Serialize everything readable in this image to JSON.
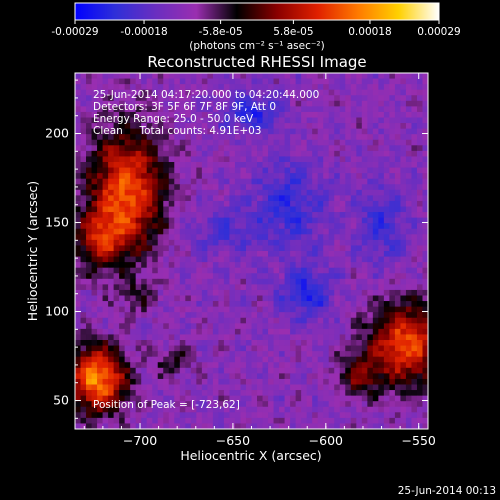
{
  "colorbar": {
    "gradient": [
      "#0000ff",
      "#2f2fd8",
      "#6a2ec0",
      "#9a2eb0",
      "#000000",
      "#8a0000",
      "#e02000",
      "#ff7a00",
      "#ffd000",
      "#ffffff"
    ],
    "tick_labels": [
      "-0.00029",
      "-0.00018",
      "-5.8e-05",
      "5.8e-05",
      "0.00018",
      "0.00029"
    ],
    "tick_values": [
      -0.00029,
      -0.00018,
      -5.8e-05,
      5.8e-05,
      0.00018,
      0.00029
    ],
    "range": [
      -0.00029,
      0.00029
    ],
    "units": "(photons cm⁻² s⁻¹ asec⁻²)"
  },
  "chart_data": {
    "type": "heatmap",
    "title": "Reconstructed RHESSI Image",
    "xlabel": "Heliocentric X (arcsec)",
    "ylabel": "Heliocentric Y (arcsec)",
    "xlim": [
      -735,
      -545
    ],
    "ylim": [
      34,
      234
    ],
    "xticks": [
      -700,
      -650,
      -600,
      -550
    ],
    "xtick_labels": [
      "−700",
      "−650",
      "−600",
      "−550"
    ],
    "yticks": [
      50,
      100,
      150,
      200
    ],
    "ytick_labels": [
      "50",
      "100",
      "150",
      "200"
    ],
    "annotation_lines": [
      "25-Jun-2014 04:17:20.000 to 04:20:44.000",
      "Detectors: 3F 5F 6F 7F 8F 9F, Att 0",
      "Energy Range: 25.0 - 50.0 keV",
      "Clean     Total counts: 4.91E+03"
    ],
    "peak_label": "Position of Peak = [-723,62]",
    "peak": [
      -723,
      62
    ],
    "grid": false,
    "sources": [
      {
        "x": -723,
        "y": 62,
        "sx": 11,
        "sy": 13,
        "amp": 0.00029
      },
      {
        "x": -707,
        "y": 168,
        "sx": 14,
        "sy": 24,
        "amp": 0.00025
      },
      {
        "x": -722,
        "y": 140,
        "sx": 10,
        "sy": 12,
        "amp": 0.00015
      },
      {
        "x": -557,
        "y": 81,
        "sx": 14,
        "sy": 16,
        "amp": 0.00024
      },
      {
        "x": -583,
        "y": 64,
        "sx": 8,
        "sy": 8,
        "amp": 0.00012
      },
      {
        "x": -683,
        "y": 72,
        "sx": 7,
        "sy": 6,
        "amp": 8e-05
      },
      {
        "x": -702,
        "y": 108,
        "sx": 7,
        "sy": 6,
        "amp": 7e-05
      },
      {
        "x": -640,
        "y": 212,
        "sx": 10,
        "sy": 8,
        "amp": -0.00012
      },
      {
        "x": -620,
        "y": 160,
        "sx": 14,
        "sy": 18,
        "amp": -0.0001
      },
      {
        "x": -610,
        "y": 110,
        "sx": 10,
        "sy": 10,
        "amp": -0.00012
      },
      {
        "x": -570,
        "y": 150,
        "sx": 10,
        "sy": 16,
        "amp": -9e-05
      },
      {
        "x": -655,
        "y": 145,
        "sx": 12,
        "sy": 10,
        "amp": -7e-05
      }
    ]
  },
  "footer": {
    "timestamp": "25-Jun-2014 00:13"
  }
}
